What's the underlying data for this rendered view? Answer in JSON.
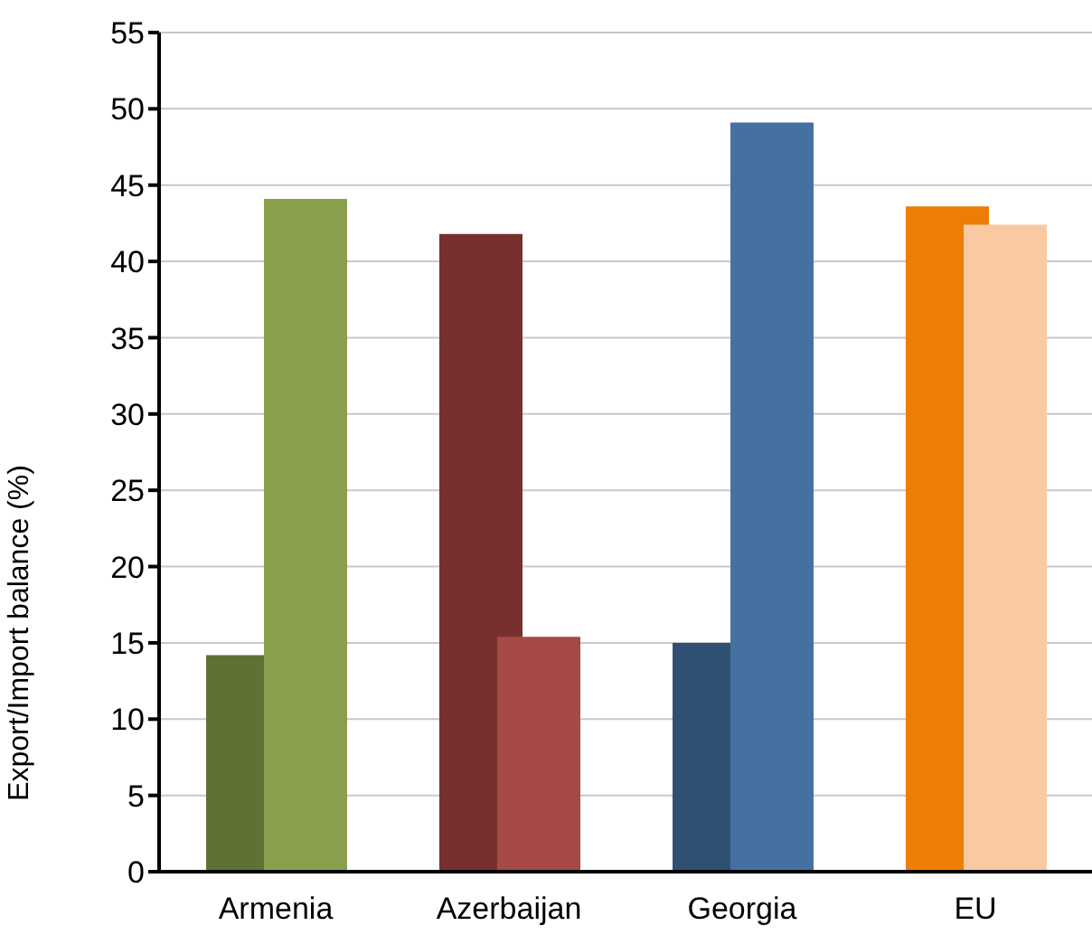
{
  "chart_data": {
    "type": "bar",
    "ylabel": "Export/Import balance (%)",
    "categories": [
      "Armenia",
      "Azerbaijan",
      "Georgia",
      "EU"
    ],
    "series": [
      {
        "colors": [
          "#5f7235",
          "#77302e",
          "#305073",
          "#ec7d06"
        ],
        "values": [
          14.2,
          41.8,
          15.0,
          43.6
        ]
      },
      {
        "colors": [
          "#8a9f4c",
          "#a54a45",
          "#4571a2",
          "#f9c9a2"
        ],
        "values": [
          44.1,
          15.4,
          49.1,
          42.4
        ]
      }
    ],
    "ylim": [
      0,
      55
    ],
    "yticks": [
      0,
      5,
      10,
      15,
      20,
      25,
      30,
      35,
      40,
      45,
      50,
      55
    ],
    "grid": "y",
    "legend": false
  }
}
